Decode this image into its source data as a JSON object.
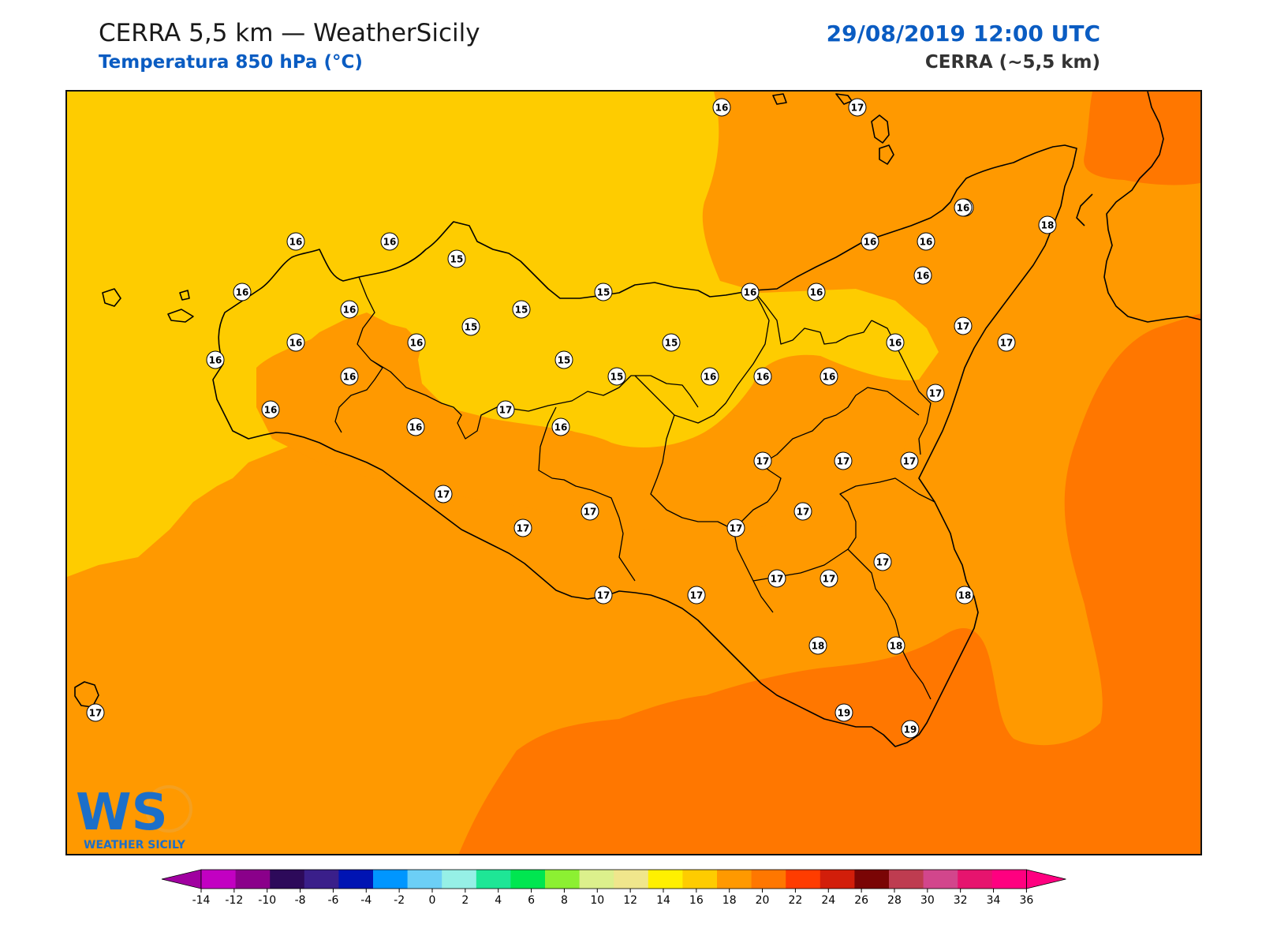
{
  "header": {
    "title": "CERRA 5,5 km — WeatherSicily",
    "subtitle": "Temperatura 850 hPa (°C)",
    "valid_time": "29/08/2019 12:00 UTC",
    "model": "CERRA (~5,5 km)"
  },
  "map": {
    "region": "Sicily",
    "field": "temperature_850hPa",
    "units": "°C",
    "fill_colors": {
      "t14_16": "#fecc00",
      "t16_18": "#ff9900",
      "t18_20": "#ff7700"
    }
  },
  "stations": [
    {
      "label": "16"
    },
    {
      "label": "17"
    },
    {
      "label": "16"
    },
    {
      "label": "16"
    },
    {
      "label": "15"
    },
    {
      "label": "16"
    },
    {
      "label": "16"
    },
    {
      "label": "16"
    },
    {
      "label": "15"
    },
    {
      "label": "15"
    },
    {
      "label": "15"
    },
    {
      "label": "16"
    },
    {
      "label": "16"
    },
    {
      "label": "16"
    },
    {
      "label": "16"
    },
    {
      "label": "16"
    },
    {
      "label": "17"
    },
    {
      "label": "18"
    },
    {
      "label": "16"
    },
    {
      "label": "16"
    },
    {
      "label": "17"
    },
    {
      "label": "16"
    },
    {
      "label": "15"
    },
    {
      "label": "15"
    },
    {
      "label": "15"
    },
    {
      "label": "16"
    },
    {
      "label": "16"
    },
    {
      "label": "16"
    },
    {
      "label": "16"
    },
    {
      "label": "17"
    },
    {
      "label": "16"
    },
    {
      "label": "16"
    },
    {
      "label": "16"
    },
    {
      "label": "16"
    },
    {
      "label": "16"
    },
    {
      "label": "17"
    },
    {
      "label": "17"
    },
    {
      "label": "17"
    },
    {
      "label": "17"
    },
    {
      "label": "17"
    },
    {
      "label": "17"
    },
    {
      "label": "17"
    },
    {
      "label": "17"
    },
    {
      "label": "17"
    },
    {
      "label": "17"
    },
    {
      "label": "17"
    },
    {
      "label": "17"
    },
    {
      "label": "17"
    },
    {
      "label": "18"
    },
    {
      "label": "18"
    },
    {
      "label": "18"
    },
    {
      "label": "17"
    },
    {
      "label": "19"
    },
    {
      "label": "19"
    },
    {
      "label": "17"
    }
  ],
  "colorbar": {
    "ticks": [
      "-14",
      "-12",
      "-10",
      "-8",
      "-6",
      "-4",
      "-2",
      "0",
      "2",
      "4",
      "6",
      "8",
      "10",
      "12",
      "14",
      "16",
      "18",
      "20",
      "22",
      "24",
      "26",
      "28",
      "30",
      "32",
      "34",
      "36"
    ],
    "colors": [
      "#c200c2",
      "#8a008a",
      "#2d0a5a",
      "#3a1f8a",
      "#0014b3",
      "#0096ff",
      "#6ccff6",
      "#96f0e6",
      "#1ee696",
      "#00e650",
      "#8cf032",
      "#dcf08c",
      "#f0e68c",
      "#fff000",
      "#fecc00",
      "#ff9900",
      "#ff7700",
      "#ff3c00",
      "#d21e0a",
      "#7a0505",
      "#be3c50",
      "#d2468c",
      "#e6146e",
      "#ff0080"
    ],
    "under_color": "#a000a0",
    "over_color": "#ff0080"
  },
  "logo": {
    "mark": "WS",
    "caption": "WEATHER SICILY"
  }
}
